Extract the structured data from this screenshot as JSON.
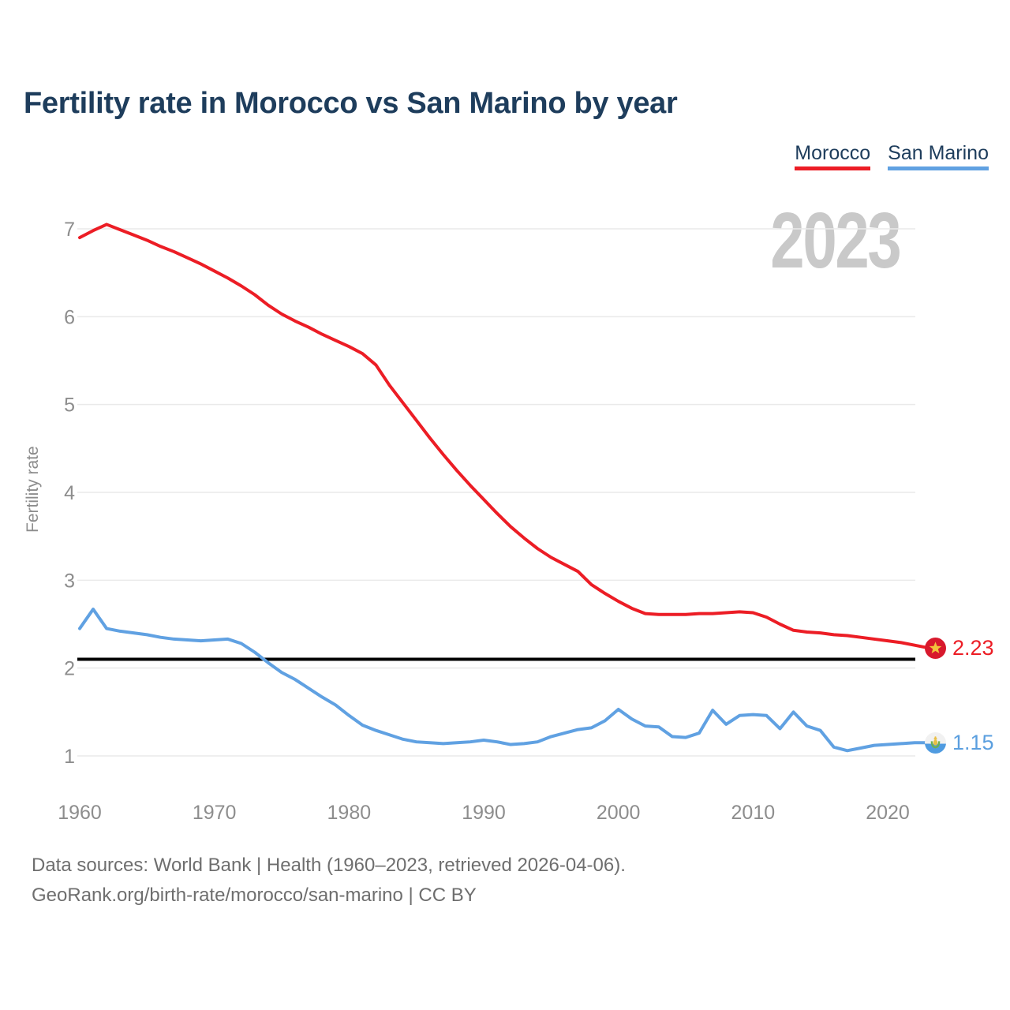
{
  "title": "Fertility rate in Morocco vs San Marino by year",
  "footer": {
    "line1": "Data sources: World Bank | Health (1960–2023, retrieved 2026-04-06).",
    "line2": "GeoRank.org/birth-rate/morocco/san-marino | CC BY"
  },
  "end_labels": {
    "morocco": {
      "value": "2.23",
      "color": "#ec1d25",
      "flag": "morocco-flag"
    },
    "san_marino": {
      "value": "1.15",
      "color": "#5b9fdf",
      "flag": "san-marino-flag"
    }
  },
  "chart_data": {
    "type": "line",
    "title": "Fertility rate in Morocco vs San Marino by year",
    "xlabel": "",
    "ylabel": "Fertility rate",
    "watermark": "2023",
    "grid": "horizontal-light",
    "legend_position": "top-right",
    "ylim": [
      1,
      7.1
    ],
    "xlim": [
      1958.5,
      2025
    ],
    "yticks": [
      1,
      2,
      3,
      4,
      5,
      6,
      7
    ],
    "xticks": [
      1960,
      1970,
      1980,
      1990,
      2000,
      2010,
      2020
    ],
    "reference_line": {
      "value": 2.1,
      "color": "#000000",
      "meaning": "replacement-level fertility"
    },
    "x": [
      1960,
      1961,
      1962,
      1963,
      1964,
      1965,
      1966,
      1967,
      1968,
      1969,
      1970,
      1971,
      1972,
      1973,
      1974,
      1975,
      1976,
      1977,
      1978,
      1979,
      1980,
      1981,
      1982,
      1983,
      1984,
      1985,
      1986,
      1987,
      1988,
      1989,
      1990,
      1991,
      1992,
      1993,
      1994,
      1995,
      1996,
      1997,
      1998,
      1999,
      2000,
      2001,
      2002,
      2003,
      2004,
      2005,
      2006,
      2007,
      2008,
      2009,
      2010,
      2011,
      2012,
      2013,
      2014,
      2015,
      2016,
      2017,
      2018,
      2019,
      2020,
      2021,
      2022,
      2023
    ],
    "series": [
      {
        "name": "Morocco",
        "color": "#ec1d25",
        "final_value": 2.23,
        "values": [
          6.9,
          6.98,
          7.05,
          6.99,
          6.93,
          6.87,
          6.8,
          6.74,
          6.67,
          6.6,
          6.52,
          6.44,
          6.35,
          6.25,
          6.13,
          6.03,
          5.95,
          5.88,
          5.8,
          5.73,
          5.66,
          5.58,
          5.45,
          5.22,
          5.02,
          4.82,
          4.62,
          4.43,
          4.25,
          4.08,
          3.92,
          3.76,
          3.61,
          3.48,
          3.36,
          3.26,
          3.18,
          3.1,
          2.95,
          2.85,
          2.76,
          2.68,
          2.62,
          2.61,
          2.61,
          2.61,
          2.62,
          2.62,
          2.63,
          2.64,
          2.63,
          2.58,
          2.5,
          2.43,
          2.41,
          2.4,
          2.38,
          2.37,
          2.35,
          2.33,
          2.31,
          2.29,
          2.26,
          2.23
        ]
      },
      {
        "name": "San Marino",
        "color": "#60a1e2",
        "final_value": 1.15,
        "values": [
          2.45,
          2.67,
          2.45,
          2.42,
          2.4,
          2.38,
          2.35,
          2.33,
          2.32,
          2.31,
          2.32,
          2.33,
          2.28,
          2.18,
          2.06,
          1.95,
          1.87,
          1.77,
          1.67,
          1.58,
          1.46,
          1.35,
          1.29,
          1.24,
          1.19,
          1.16,
          1.15,
          1.14,
          1.15,
          1.16,
          1.18,
          1.16,
          1.13,
          1.14,
          1.16,
          1.22,
          1.26,
          1.3,
          1.32,
          1.4,
          1.53,
          1.42,
          1.34,
          1.33,
          1.22,
          1.21,
          1.26,
          1.52,
          1.36,
          1.46,
          1.47,
          1.46,
          1.31,
          1.5,
          1.34,
          1.29,
          1.1,
          1.06,
          1.09,
          1.12,
          1.13,
          1.14,
          1.15,
          1.15
        ]
      }
    ]
  }
}
